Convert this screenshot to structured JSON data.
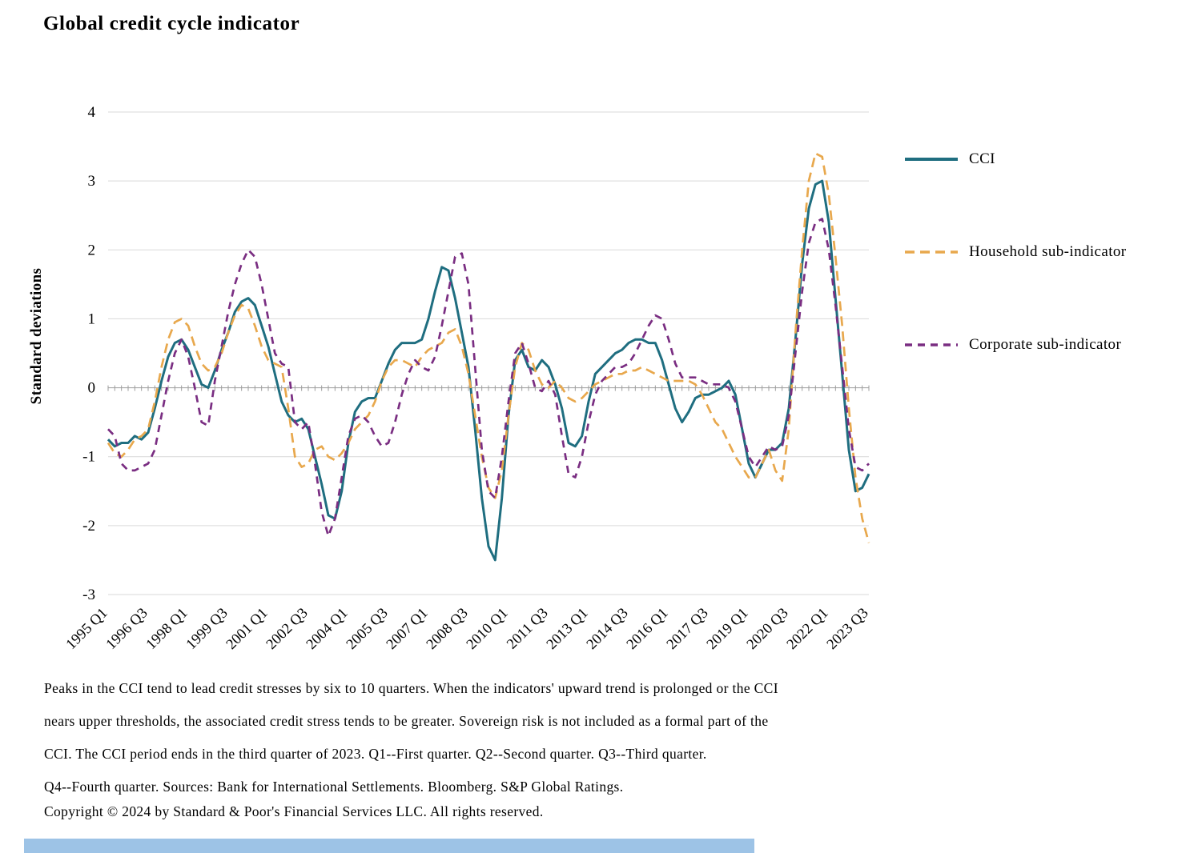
{
  "chart_data": {
    "type": "line",
    "title": "Global credit cycle indicator",
    "ylabel": "Standard deviations",
    "ylim": [
      -3,
      4
    ],
    "yticks": [
      4,
      3,
      2,
      1,
      0,
      -1,
      -2,
      -3
    ],
    "points": 115,
    "x_start": "1995 Q1",
    "x_end": "2023 Q3",
    "x_tick_step": 6,
    "x_tick_labels": [
      "1995 Q1",
      "1996 Q3",
      "1998 Q1",
      "1999 Q3",
      "2001 Q1",
      "2002 Q3",
      "2004 Q1",
      "2005 Q3",
      "2007 Q1",
      "2008 Q3",
      "2010 Q1",
      "2011 Q3",
      "2013 Q1",
      "2014 Q3",
      "2016 Q1",
      "2017 Q3",
      "2019 Q1",
      "2020 Q3",
      "2022 Q1",
      "2023 Q3"
    ],
    "legend_position": "right",
    "grid": "horizontal",
    "series": [
      {
        "name": "CCI",
        "color": "#1F6E80",
        "dash": "solid",
        "values": [
          -0.75,
          -0.85,
          -0.8,
          -0.8,
          -0.7,
          -0.75,
          -0.65,
          -0.3,
          0.1,
          0.45,
          0.65,
          0.7,
          0.55,
          0.3,
          0.05,
          0,
          0.25,
          0.55,
          0.8,
          1.1,
          1.25,
          1.3,
          1.2,
          0.9,
          0.6,
          0.2,
          -0.2,
          -0.4,
          -0.5,
          -0.45,
          -0.6,
          -1,
          -1.4,
          -1.85,
          -1.9,
          -1.5,
          -0.8,
          -0.35,
          -0.2,
          -0.15,
          -0.15,
          0.1,
          0.35,
          0.55,
          0.65,
          0.65,
          0.65,
          0.7,
          1,
          1.4,
          1.75,
          1.7,
          1.3,
          0.8,
          0.3,
          -0.6,
          -1.6,
          -2.3,
          -2.5,
          -1.6,
          -0.4,
          0.4,
          0.55,
          0.3,
          0.25,
          0.4,
          0.3,
          0.05,
          -0.3,
          -0.8,
          -0.85,
          -0.7,
          -0.2,
          0.2,
          0.3,
          0.4,
          0.5,
          0.55,
          0.65,
          0.7,
          0.7,
          0.65,
          0.65,
          0.4,
          0.05,
          -0.3,
          -0.5,
          -0.35,
          -0.15,
          -0.1,
          -0.1,
          -0.05,
          0,
          0.1,
          -0.1,
          -0.6,
          -1.1,
          -1.3,
          -1.1,
          -0.9,
          -0.9,
          -0.8,
          -0.3,
          0.7,
          1.8,
          2.6,
          2.95,
          3,
          2.4,
          1.3,
          0.2,
          -0.9,
          -1.5,
          -1.45,
          -1.25
        ]
      },
      {
        "name": "Household sub-indicator",
        "color": "#E8A84D",
        "dash": "dashed",
        "values": [
          -0.8,
          -0.95,
          -1,
          -0.9,
          -0.75,
          -0.7,
          -0.6,
          -0.2,
          0.3,
          0.7,
          0.95,
          1,
          0.9,
          0.6,
          0.35,
          0.25,
          0.3,
          0.5,
          0.8,
          1.05,
          1.2,
          1.15,
          0.9,
          0.6,
          0.4,
          0.35,
          0.3,
          -0.3,
          -1,
          -1.15,
          -1.1,
          -0.9,
          -0.85,
          -1,
          -1.05,
          -0.95,
          -0.8,
          -0.6,
          -0.5,
          -0.4,
          -0.2,
          0.1,
          0.3,
          0.4,
          0.4,
          0.35,
          0.3,
          0.45,
          0.55,
          0.6,
          0.65,
          0.8,
          0.85,
          0.6,
          0.2,
          -0.4,
          -1,
          -1.45,
          -1.6,
          -1.2,
          -0.4,
          0.3,
          0.65,
          0.55,
          0.25,
          0.05,
          0,
          0.1,
          0,
          -0.15,
          -0.2,
          -0.15,
          -0.05,
          0.05,
          0.1,
          0.15,
          0.2,
          0.2,
          0.25,
          0.25,
          0.3,
          0.25,
          0.2,
          0.15,
          0.1,
          0.1,
          0.1,
          0.1,
          0.05,
          -0.1,
          -0.3,
          -0.5,
          -0.6,
          -0.8,
          -1,
          -1.15,
          -1.3,
          -1.3,
          -1.1,
          -0.9,
          -1.2,
          -1.35,
          -0.6,
          0.8,
          2,
          3,
          3.4,
          3.35,
          2.8,
          1.9,
          0.9,
          -0.3,
          -1.3,
          -1.9,
          -2.25
        ]
      },
      {
        "name": "Corporate sub-indicator",
        "color": "#7A2E82",
        "dash": "dashed",
        "values": [
          -0.6,
          -0.7,
          -1.1,
          -1.2,
          -1.2,
          -1.15,
          -1.1,
          -0.9,
          -0.4,
          0.1,
          0.5,
          0.7,
          0.45,
          0,
          -0.5,
          -0.55,
          0.1,
          0.6,
          1.1,
          1.5,
          1.8,
          2,
          1.9,
          1.5,
          1,
          0.5,
          0.35,
          0.3,
          -0.5,
          -0.6,
          -0.5,
          -1.1,
          -1.8,
          -2.15,
          -1.9,
          -1.3,
          -0.7,
          -0.45,
          -0.4,
          -0.5,
          -0.7,
          -0.85,
          -0.8,
          -0.5,
          -0.1,
          0.2,
          0.4,
          0.3,
          0.25,
          0.45,
          0.9,
          1.4,
          1.9,
          1.95,
          1.5,
          0.3,
          -0.9,
          -1.5,
          -1.6,
          -1,
          -0.2,
          0.5,
          0.65,
          0.35,
          0,
          -0.05,
          0.1,
          -0.1,
          -0.7,
          -1.25,
          -1.3,
          -1,
          -0.5,
          -0.1,
          0.1,
          0.2,
          0.3,
          0.3,
          0.35,
          0.5,
          0.7,
          0.9,
          1.05,
          1,
          0.7,
          0.35,
          0.15,
          0.15,
          0.15,
          0.1,
          0.05,
          0.05,
          0.05,
          0,
          -0.2,
          -0.6,
          -1,
          -1.15,
          -1,
          -0.85,
          -0.9,
          -0.85,
          -0.4,
          0.5,
          1.4,
          2.1,
          2.4,
          2.45,
          2,
          1.2,
          0.3,
          -0.6,
          -1.15,
          -1.2,
          -1.1
        ]
      }
    ]
  },
  "footnotes": [
    "Peaks in the CCI tend to lead credit stresses by six to 10 quarters. When the indicators' upward trend is prolonged or the CCI",
    "nears upper thresholds, the associated credit stress tends to be greater. Sovereign risk is not included as a formal part of the",
    "CCI. The CCI period ends in the third quarter of 2023. Q1--First quarter. Q2--Second quarter. Q3--Third quarter.",
    "Q4--Fourth quarter. Sources: Bank for International Settlements. Bloomberg. S&P Global Ratings.",
    "Copyright © 2024 by Standard & Poor's Financial Services LLC. All rights reserved."
  ],
  "colors": {
    "gridline": "#D9D9D9",
    "zero_axis": "#9E9E9E",
    "footer_bar": "#9DC3E6",
    "text": "#000000"
  }
}
